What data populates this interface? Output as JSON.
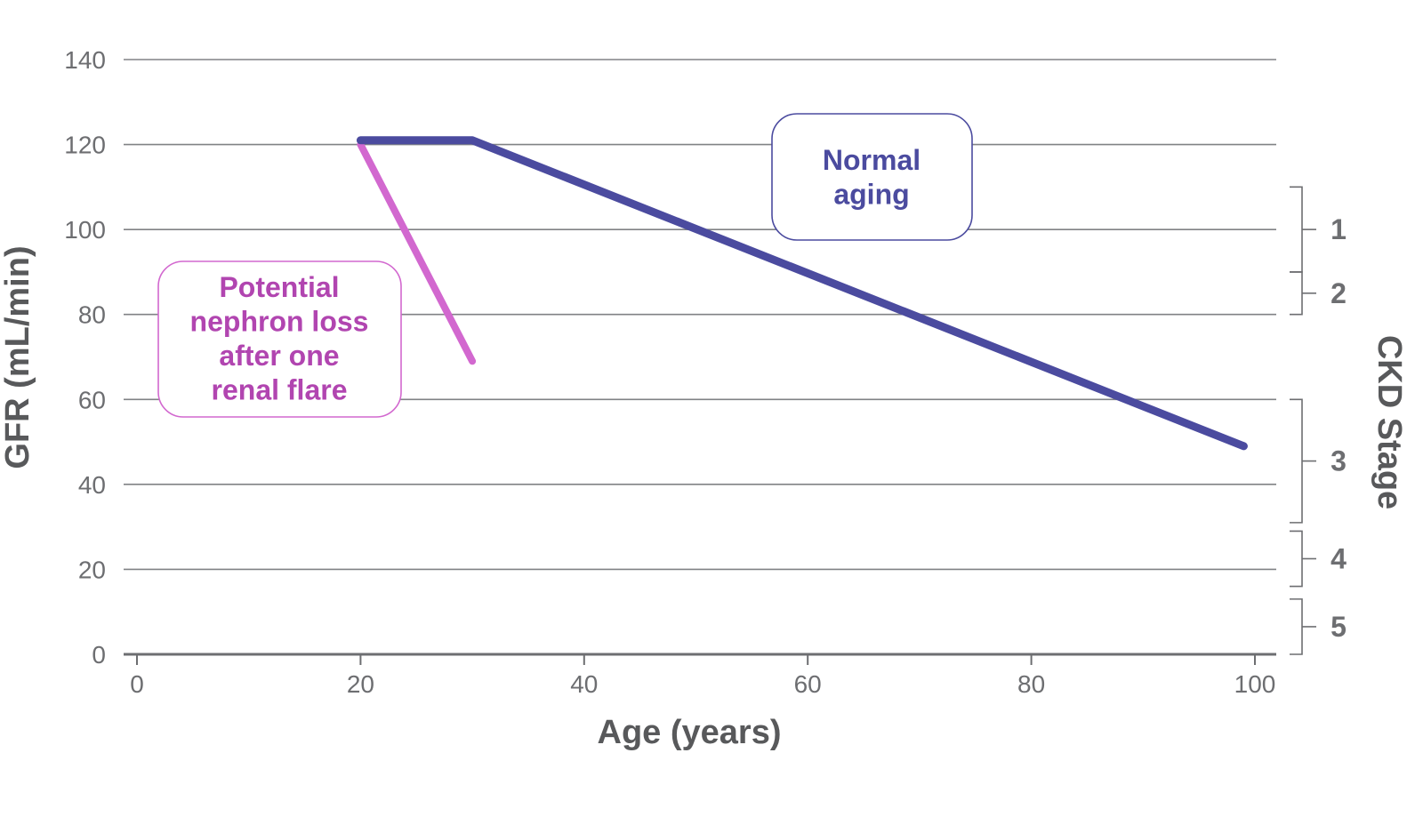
{
  "chart_data": {
    "type": "line",
    "xlabel": "Age (years)",
    "ylabel": "GFR (mL/min)",
    "xlim": [
      0,
      100
    ],
    "ylim": [
      0,
      140
    ],
    "x_ticks": [
      "0",
      "20",
      "40",
      "60",
      "80",
      "100"
    ],
    "y_ticks": [
      "0",
      "20",
      "40",
      "60",
      "80",
      "100",
      "120",
      "140"
    ],
    "grid": true,
    "series": [
      {
        "key": "normal",
        "color": "#4b4b9f",
        "x": [
          20,
          30,
          99
        ],
        "y": [
          121,
          121,
          49
        ]
      },
      {
        "key": "flare",
        "color": "#d268cf",
        "x": [
          20,
          30
        ],
        "y": [
          120,
          69
        ]
      }
    ],
    "annotations": [
      {
        "key": "normal",
        "lines": [
          "Normal",
          "aging"
        ],
        "color": "#4b4b9f",
        "border": "#4b4b9f"
      },
      {
        "key": "flare",
        "lines": [
          "Potential",
          "nephron loss",
          "after one",
          "renal flare"
        ],
        "color": "#b145b0",
        "border": "#d268cf"
      }
    ],
    "secondary_axis": {
      "title": "CKD Stage",
      "stages": [
        {
          "label": "1",
          "range": [
            90,
            110
          ]
        },
        {
          "label": "2",
          "range": [
            80,
            90
          ]
        },
        {
          "label": "3",
          "range": [
            31,
            60
          ]
        },
        {
          "label": "4",
          "range": [
            16,
            29
          ]
        },
        {
          "label": "5",
          "range": [
            0,
            13
          ]
        }
      ]
    }
  }
}
